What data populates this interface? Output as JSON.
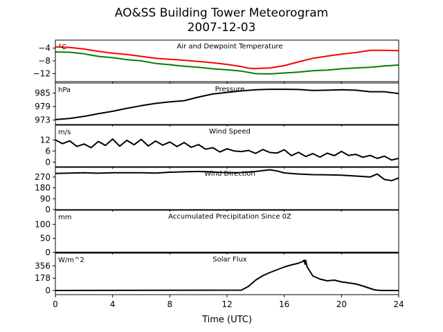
{
  "figure": {
    "title": "AO&SS Building Tower Meteorogram",
    "subtitle": "2007-12-03"
  },
  "x_axis": {
    "label": "Time (UTC)",
    "range": [
      0,
      24
    ],
    "ticks": [
      0,
      4,
      8,
      12,
      16,
      20,
      24
    ]
  },
  "chart_data": [
    {
      "type": "line",
      "title": "Air and Dewpoint Temperature",
      "unit_label": "°C",
      "ylim": [
        -14.5,
        -1.5
      ],
      "yticks": [
        -4,
        -8,
        -12
      ],
      "ytick_labels": [
        "−4",
        "−8",
        "−12"
      ],
      "grid": false,
      "series": [
        {
          "color": "#ff0000",
          "x": [
            0,
            1,
            2,
            3,
            4,
            5,
            6,
            7,
            8,
            9,
            10,
            11,
            12,
            13,
            13.5,
            14,
            15,
            16,
            17,
            18,
            19,
            20,
            21,
            22,
            23,
            24
          ],
          "y": [
            -3.6,
            -3.8,
            -4.3,
            -5.0,
            -5.6,
            -6.0,
            -6.6,
            -7.2,
            -7.5,
            -7.8,
            -8.2,
            -8.6,
            -9.1,
            -9.8,
            -10.3,
            -10.4,
            -10.2,
            -9.5,
            -8.3,
            -7.2,
            -6.5,
            -5.9,
            -5.4,
            -4.7,
            -4.7,
            -4.8
          ]
        },
        {
          "color": "#008000",
          "x": [
            0,
            1,
            2,
            3,
            4,
            5,
            6,
            7,
            8,
            9,
            10,
            11,
            12,
            13,
            14,
            15,
            16,
            17,
            18,
            19,
            20,
            21,
            22,
            23,
            24
          ],
          "y": [
            -5.2,
            -5.3,
            -5.8,
            -6.6,
            -7.0,
            -7.6,
            -8.0,
            -8.8,
            -9.2,
            -9.7,
            -10.0,
            -10.5,
            -10.8,
            -11.2,
            -12.0,
            -12.1,
            -11.8,
            -11.5,
            -11.1,
            -10.9,
            -10.5,
            -10.2,
            -10.0,
            -9.6,
            -9.3
          ]
        }
      ]
    },
    {
      "type": "line",
      "title": "Pressure",
      "unit_label": "hPa",
      "ylim": [
        971,
        989.5
      ],
      "yticks": [
        985,
        979,
        973
      ],
      "ytick_labels": [
        "985",
        "979",
        "973"
      ],
      "grid": false,
      "series": [
        {
          "color": "#000000",
          "x": [
            0,
            1,
            2,
            3,
            4,
            5,
            6,
            7,
            8,
            9,
            10,
            11,
            12,
            13,
            14,
            15,
            16,
            17,
            18,
            19,
            20,
            21,
            22,
            23,
            24
          ],
          "y": [
            973.2,
            973.7,
            974.6,
            975.8,
            976.9,
            978.2,
            979.4,
            980.4,
            981.1,
            981.6,
            983.2,
            984.6,
            985.3,
            986.0,
            986.5,
            986.7,
            986.7,
            986.6,
            986.2,
            986.3,
            986.5,
            986.3,
            985.6,
            985.6,
            984.8
          ]
        }
      ]
    },
    {
      "type": "line",
      "title": "Wind Speed",
      "unit_label": "m/s",
      "ylim": [
        -2.5,
        20
      ],
      "yticks": [
        12,
        6,
        0
      ],
      "ytick_labels": [
        "12",
        "6",
        "0"
      ],
      "grid": false,
      "series": [
        {
          "color": "#000000",
          "x": [
            0,
            0.5,
            1,
            1.5,
            2,
            2.5,
            3,
            3.5,
            4,
            4.5,
            5,
            5.5,
            6,
            6.5,
            7,
            7.5,
            8,
            8.5,
            9,
            9.5,
            10,
            10.5,
            11,
            11.5,
            12,
            12.5,
            13,
            13.5,
            14,
            14.5,
            15,
            15.5,
            16,
            16.5,
            17,
            17.5,
            18,
            18.5,
            19,
            19.5,
            20,
            20.5,
            21,
            21.5,
            22,
            22.5,
            23,
            23.5,
            24
          ],
          "y": [
            12.0,
            10.0,
            11.5,
            8.5,
            9.8,
            7.8,
            11.2,
            9.0,
            12.5,
            8.6,
            11.8,
            9.4,
            12.3,
            8.7,
            11.4,
            9.2,
            10.9,
            8.4,
            10.6,
            8.0,
            9.5,
            7.0,
            7.8,
            5.5,
            7.2,
            6.0,
            5.7,
            6.3,
            4.7,
            6.8,
            5.2,
            4.9,
            6.7,
            3.5,
            5.3,
            3.0,
            4.6,
            2.7,
            4.8,
            3.5,
            5.8,
            3.6,
            4.2,
            2.6,
            3.6,
            2.0,
            3.2,
            1.1,
            2.0
          ]
        }
      ]
    },
    {
      "type": "line",
      "title": "Wind Direction",
      "unit_label": "",
      "ylim": [
        0,
        350
      ],
      "yticks": [
        270,
        180,
        90,
        0
      ],
      "ytick_labels": [
        "270",
        "180",
        "90",
        "0"
      ],
      "grid": false,
      "series": [
        {
          "color": "#000000",
          "x": [
            0,
            1,
            2,
            3,
            4,
            5,
            6,
            7,
            8,
            9,
            10,
            11,
            12,
            13,
            14,
            15,
            15.5,
            16,
            17,
            18,
            19,
            20,
            21,
            22,
            22.5,
            23,
            23.5,
            24
          ],
          "y": [
            300,
            303,
            305,
            302,
            306,
            306,
            305,
            303,
            310,
            313,
            316,
            312,
            305,
            307,
            316,
            330,
            320,
            304,
            295,
            290,
            288,
            285,
            278,
            270,
            295,
            250,
            240,
            262
          ]
        }
      ]
    },
    {
      "type": "line",
      "title": "Accumulated Precipitation Since 0Z",
      "unit_label": "mm",
      "ylim": [
        0,
        150
      ],
      "yticks": [
        100,
        50,
        0
      ],
      "ytick_labels": [
        "100",
        "50",
        "0"
      ],
      "grid": false,
      "series": [
        {
          "color": "#000000",
          "x": [
            0,
            24
          ],
          "y": [
            0,
            0
          ]
        }
      ]
    },
    {
      "type": "line",
      "title": "Solar Flux",
      "unit_label": "W/m^2",
      "ylim": [
        -60,
        540
      ],
      "yticks": [
        356,
        178,
        0
      ],
      "ytick_labels": [
        "356",
        "178",
        "0"
      ],
      "grid": false,
      "series": [
        {
          "color": "#000000",
          "x": [
            0,
            13,
            13.5,
            14,
            14.5,
            15,
            15.5,
            16,
            16.5,
            17,
            17.3,
            17.4,
            17.45,
            17.5,
            17.6,
            17.8,
            18,
            18.5,
            19,
            19.5,
            20,
            20.5,
            21,
            21.5,
            22,
            22.3,
            22.6,
            23,
            24
          ],
          "y": [
            0,
            5,
            60,
            150,
            215,
            260,
            300,
            340,
            370,
            395,
            420,
            440,
            380,
            435,
            340,
            275,
            210,
            165,
            140,
            150,
            125,
            110,
            95,
            65,
            30,
            10,
            3,
            0,
            0
          ]
        }
      ]
    }
  ]
}
